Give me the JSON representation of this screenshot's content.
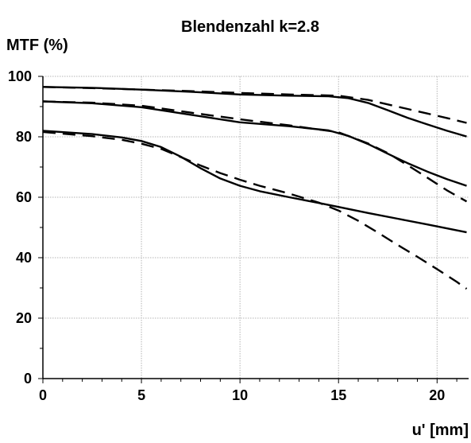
{
  "chart_data": {
    "type": "line",
    "title": "Blendenzahl k=2.8",
    "xlabel": "u' [mm]",
    "ylabel": "MTF (%)",
    "xlim": [
      0,
      21.6
    ],
    "ylim": [
      0,
      100
    ],
    "xticks": [
      0,
      5,
      10,
      15,
      20
    ],
    "yticks": [
      0,
      20,
      40,
      60,
      80,
      100
    ],
    "x_minor_step": 1,
    "y_minor_step": 10,
    "grid": true,
    "legend": "none",
    "series": [
      {
        "style": "solid",
        "color": "#000000",
        "points": [
          [
            0,
            96.5
          ],
          [
            2.5,
            96.2
          ],
          [
            5,
            95.6
          ],
          [
            7.5,
            94.9
          ],
          [
            10,
            94.0
          ],
          [
            12.5,
            93.6
          ],
          [
            14.5,
            93.4
          ],
          [
            15.5,
            92.8
          ],
          [
            16.5,
            91.2
          ],
          [
            17.5,
            88.8
          ],
          [
            18.5,
            86.3
          ],
          [
            19.5,
            84.1
          ],
          [
            20.5,
            82.0
          ],
          [
            21.5,
            80.1
          ]
        ]
      },
      {
        "style": "dashed",
        "color": "#000000",
        "points": [
          [
            0,
            96.5
          ],
          [
            2.5,
            96.1
          ],
          [
            5,
            95.6
          ],
          [
            7.5,
            95.1
          ],
          [
            10,
            94.5
          ],
          [
            12.5,
            94.0
          ],
          [
            15,
            93.6
          ],
          [
            16.5,
            92.2
          ],
          [
            17.5,
            90.7
          ],
          [
            18.5,
            89.2
          ],
          [
            19.5,
            87.7
          ],
          [
            20.5,
            86.2
          ],
          [
            21.5,
            84.6
          ]
        ]
      },
      {
        "style": "solid",
        "color": "#000000",
        "points": [
          [
            0,
            91.7
          ],
          [
            2.5,
            91.1
          ],
          [
            5,
            89.8
          ],
          [
            7.5,
            87.3
          ],
          [
            10,
            84.8
          ],
          [
            12.5,
            83.5
          ],
          [
            14.5,
            82.1
          ],
          [
            15.5,
            80.3
          ],
          [
            16.5,
            77.6
          ],
          [
            17.5,
            74.4
          ],
          [
            18.5,
            71.3
          ],
          [
            19.5,
            68.5
          ],
          [
            20.5,
            66.0
          ],
          [
            21.5,
            63.8
          ]
        ]
      },
      {
        "style": "dashed",
        "color": "#000000",
        "points": [
          [
            0,
            91.7
          ],
          [
            2.5,
            91.3
          ],
          [
            5,
            90.3
          ],
          [
            7.5,
            88.0
          ],
          [
            10,
            85.8
          ],
          [
            12.5,
            83.8
          ],
          [
            15,
            81.5
          ],
          [
            16.5,
            77.8
          ],
          [
            17.5,
            74.6
          ],
          [
            18.5,
            70.6
          ],
          [
            19.5,
            66.5
          ],
          [
            20.5,
            62.3
          ],
          [
            21.5,
            58.6
          ]
        ]
      },
      {
        "style": "solid",
        "color": "#000000",
        "points": [
          [
            0,
            82.0
          ],
          [
            2.5,
            80.9
          ],
          [
            4,
            79.8
          ],
          [
            5,
            78.6
          ],
          [
            6,
            76.6
          ],
          [
            7,
            73.4
          ],
          [
            8,
            69.6
          ],
          [
            9,
            66.2
          ],
          [
            10,
            63.8
          ],
          [
            11,
            62.0
          ],
          [
            12.5,
            60.0
          ],
          [
            14,
            58.1
          ],
          [
            15,
            56.8
          ],
          [
            16.5,
            54.8
          ],
          [
            18,
            52.9
          ],
          [
            19.5,
            51.0
          ],
          [
            21.5,
            48.4
          ]
        ]
      },
      {
        "style": "dashed",
        "color": "#000000",
        "points": [
          [
            0,
            81.6
          ],
          [
            2.5,
            80.2
          ],
          [
            4,
            79.0
          ],
          [
            5,
            77.7
          ],
          [
            6,
            76.0
          ],
          [
            7,
            73.3
          ],
          [
            8,
            70.5
          ],
          [
            9,
            68.0
          ],
          [
            10,
            65.8
          ],
          [
            11,
            63.8
          ],
          [
            12.5,
            61.2
          ],
          [
            14,
            58.2
          ],
          [
            15,
            55.6
          ],
          [
            16,
            52.2
          ],
          [
            17,
            48.3
          ],
          [
            18,
            44.2
          ],
          [
            19,
            40.3
          ],
          [
            20,
            36.2
          ],
          [
            21,
            32.0
          ],
          [
            21.5,
            29.7
          ]
        ]
      }
    ]
  }
}
